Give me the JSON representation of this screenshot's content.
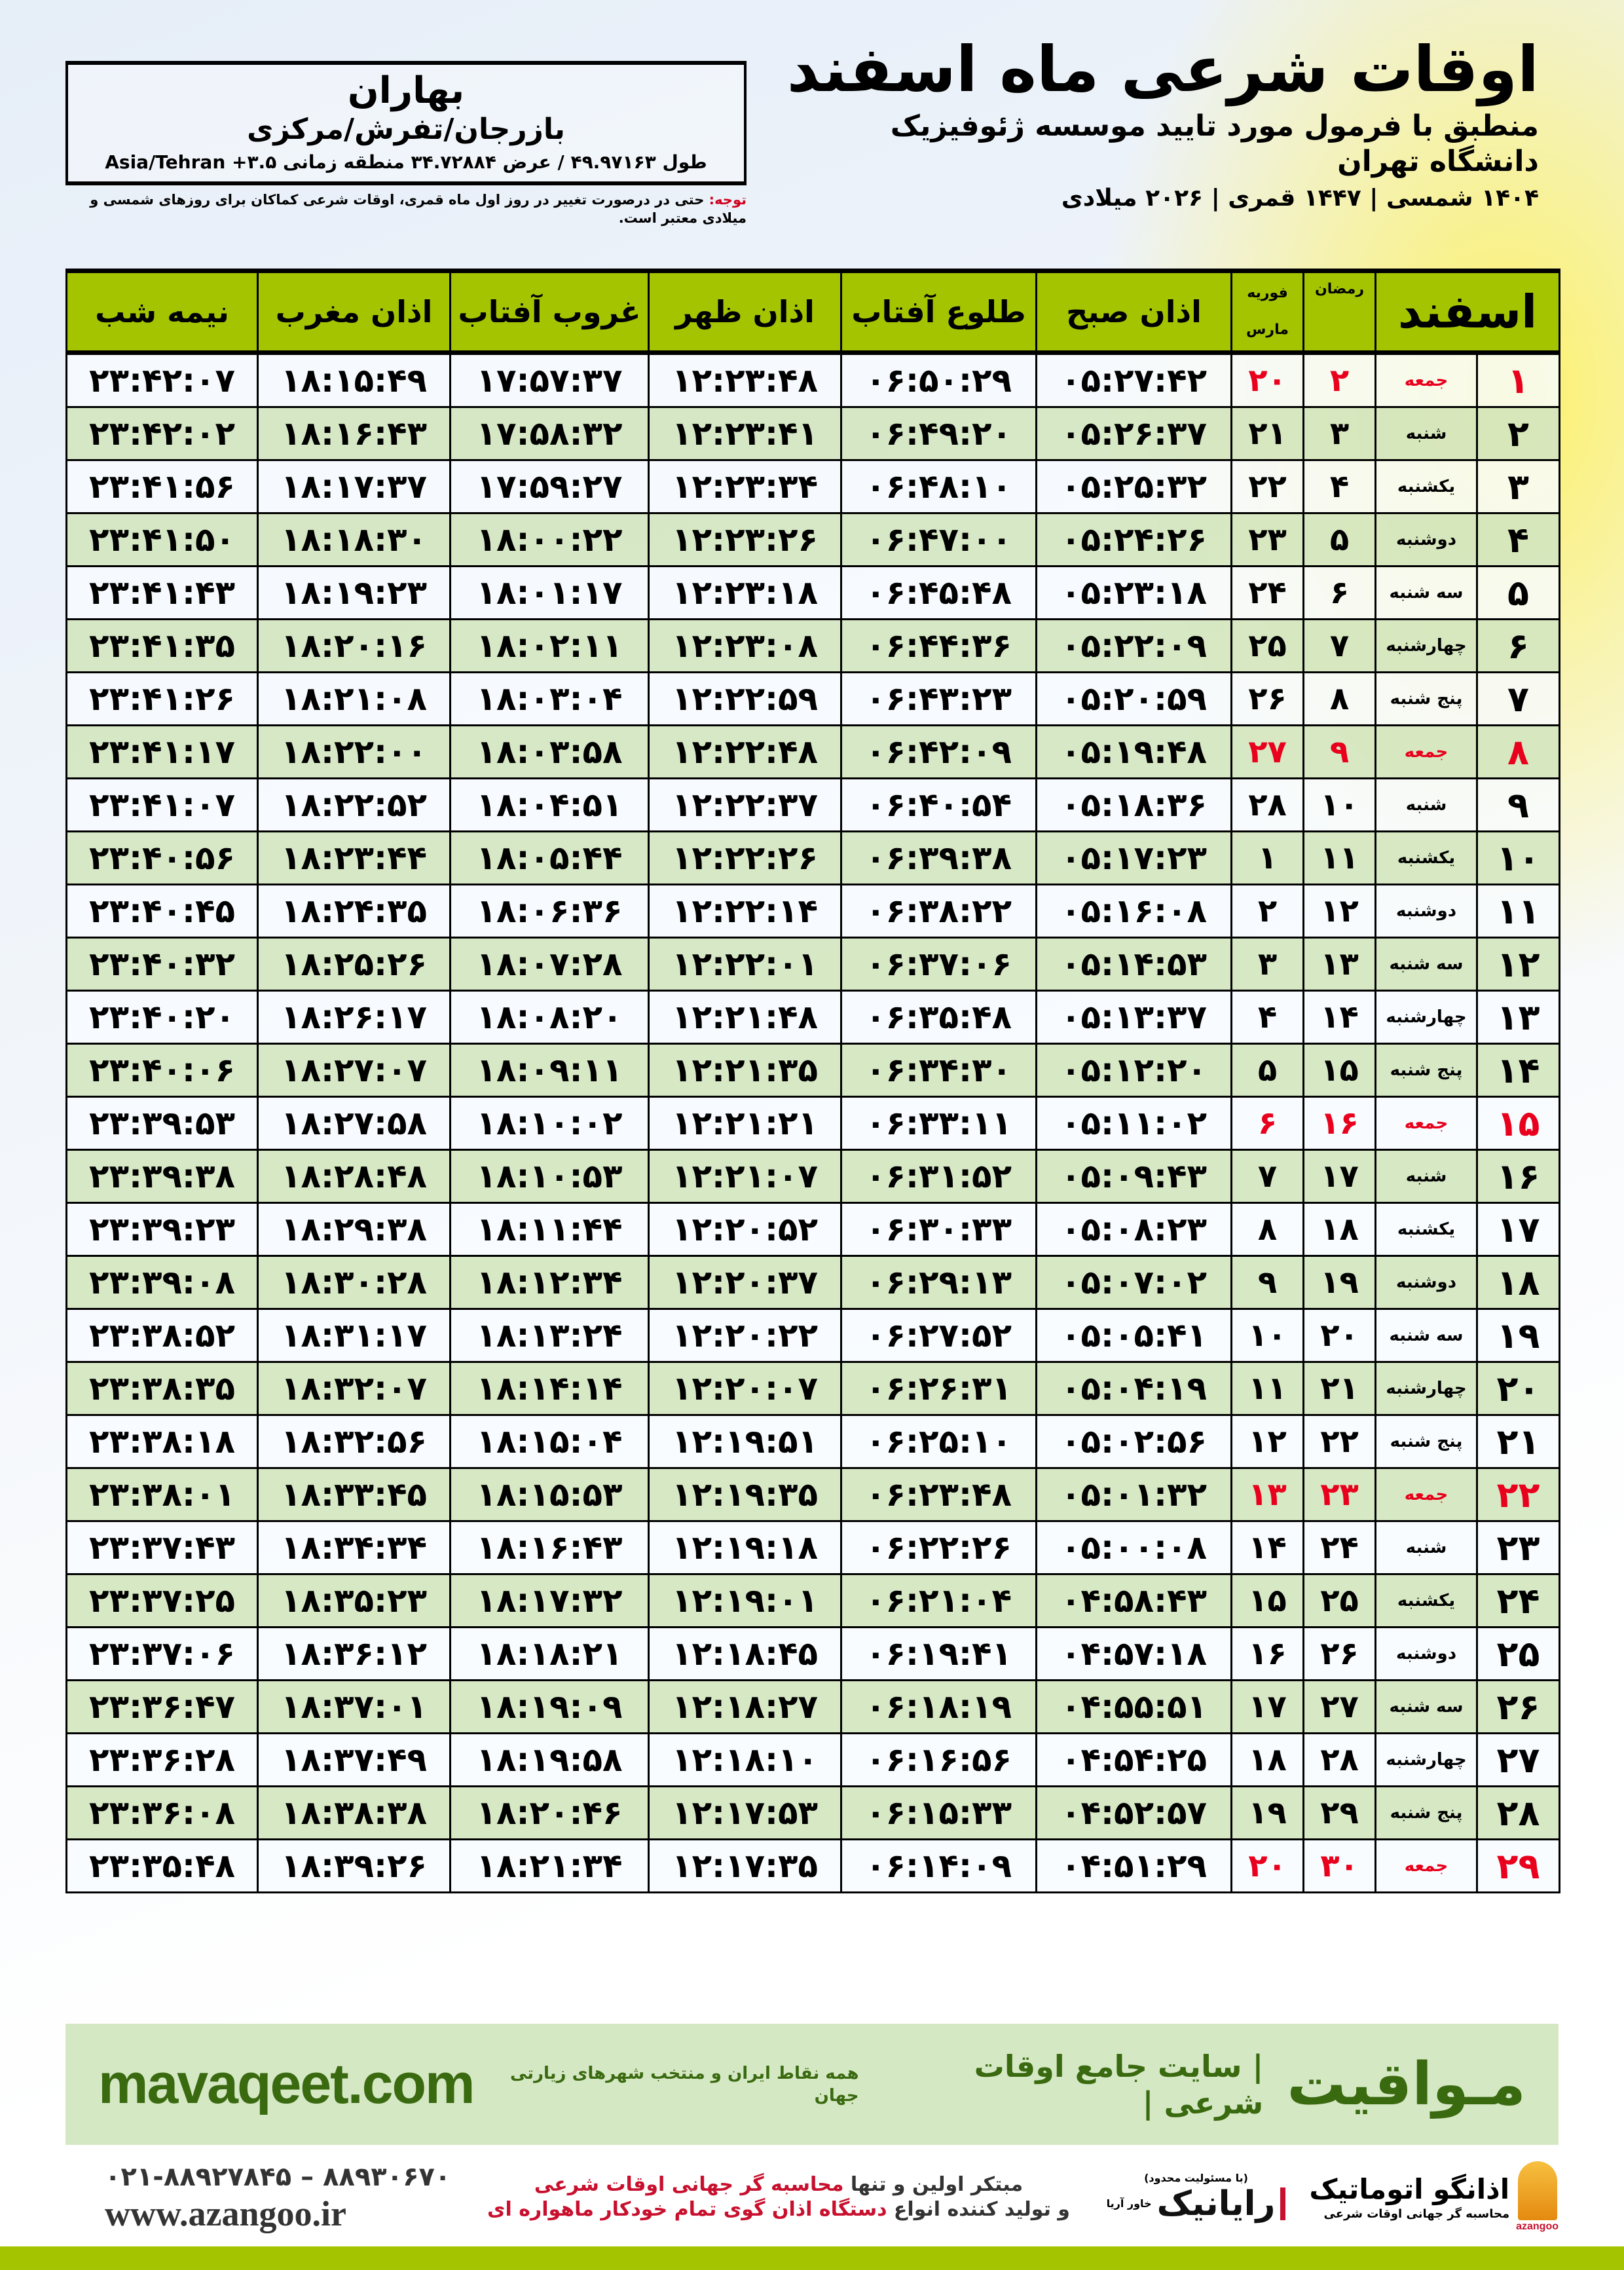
{
  "header": {
    "title": "اوقات شرعی ماه اسفند",
    "subtitle": "منطبق با فرمول مورد تایید موسسه ژئوفیزیک دانشگاه تهران",
    "dateline": "۱۴۰۴ شمسی | ۱۴۴۷ قمری | ۲۰۲۶ میلادی"
  },
  "location": {
    "name": "بهاران",
    "region": "بازرجان/تفرش/مرکزی",
    "coords": "طول ۴۹.۹۷۱۶۳ / عرض ۳۴.۷۲۸۸۴ منطقه زمانی ۳.۵+ Asia/Tehran"
  },
  "note": {
    "label": "توجه:",
    "text": " حتی در درصورت تغییر در روز اول ماه قمری، اوقات شرعی کماکان برای روزهای شمسی و میلادی معتبر است."
  },
  "colors": {
    "header_green": "#a4c400",
    "row_green": "#d4e6c0",
    "friday_red": "#e8001c",
    "brand_green": "#3a6a10"
  },
  "table": {
    "headers": {
      "month": "اسفند",
      "ramadan": "رمضان",
      "feb": "فوریه",
      "mar": "مارس",
      "fajr": "اذان صبح",
      "sunrise": "طلوع آفتاب",
      "dhuhr": "اذان ظهر",
      "sunset": "غروب آفتاب",
      "maghrib": "اذان مغرب",
      "midnight": "نیمه شب"
    },
    "rows": [
      {
        "day": "۱",
        "weekday": "جمعه",
        "ramadan": "۲",
        "gregorian": "۲۰",
        "fajr": "۰۵:۲۷:۴۲",
        "sunrise": "۰۶:۵۰:۲۹",
        "dhuhr": "۱۲:۲۳:۴۸",
        "sunset": "۱۷:۵۷:۳۷",
        "maghrib": "۱۸:۱۵:۴۹",
        "midnight": "۲۳:۴۲:۰۷",
        "holiday": true
      },
      {
        "day": "۲",
        "weekday": "شنبه",
        "ramadan": "۳",
        "gregorian": "۲۱",
        "fajr": "۰۵:۲۶:۳۷",
        "sunrise": "۰۶:۴۹:۲۰",
        "dhuhr": "۱۲:۲۳:۴۱",
        "sunset": "۱۷:۵۸:۳۲",
        "maghrib": "۱۸:۱۶:۴۳",
        "midnight": "۲۳:۴۲:۰۲"
      },
      {
        "day": "۳",
        "weekday": "یکشنبه",
        "ramadan": "۴",
        "gregorian": "۲۲",
        "fajr": "۰۵:۲۵:۳۲",
        "sunrise": "۰۶:۴۸:۱۰",
        "dhuhr": "۱۲:۲۳:۳۴",
        "sunset": "۱۷:۵۹:۲۷",
        "maghrib": "۱۸:۱۷:۳۷",
        "midnight": "۲۳:۴۱:۵۶"
      },
      {
        "day": "۴",
        "weekday": "دوشنبه",
        "ramadan": "۵",
        "gregorian": "۲۳",
        "fajr": "۰۵:۲۴:۲۶",
        "sunrise": "۰۶:۴۷:۰۰",
        "dhuhr": "۱۲:۲۳:۲۶",
        "sunset": "۱۸:۰۰:۲۲",
        "maghrib": "۱۸:۱۸:۳۰",
        "midnight": "۲۳:۴۱:۵۰"
      },
      {
        "day": "۵",
        "weekday": "سه شنبه",
        "ramadan": "۶",
        "gregorian": "۲۴",
        "fajr": "۰۵:۲۳:۱۸",
        "sunrise": "۰۶:۴۵:۴۸",
        "dhuhr": "۱۲:۲۳:۱۸",
        "sunset": "۱۸:۰۱:۱۷",
        "maghrib": "۱۸:۱۹:۲۳",
        "midnight": "۲۳:۴۱:۴۳"
      },
      {
        "day": "۶",
        "weekday": "چهارشنبه",
        "ramadan": "۷",
        "gregorian": "۲۵",
        "fajr": "۰۵:۲۲:۰۹",
        "sunrise": "۰۶:۴۴:۳۶",
        "dhuhr": "۱۲:۲۳:۰۸",
        "sunset": "۱۸:۰۲:۱۱",
        "maghrib": "۱۸:۲۰:۱۶",
        "midnight": "۲۳:۴۱:۳۵"
      },
      {
        "day": "۷",
        "weekday": "پنج شنبه",
        "ramadan": "۸",
        "gregorian": "۲۶",
        "fajr": "۰۵:۲۰:۵۹",
        "sunrise": "۰۶:۴۳:۲۳",
        "dhuhr": "۱۲:۲۲:۵۹",
        "sunset": "۱۸:۰۳:۰۴",
        "maghrib": "۱۸:۲۱:۰۸",
        "midnight": "۲۳:۴۱:۲۶"
      },
      {
        "day": "۸",
        "weekday": "جمعه",
        "ramadan": "۹",
        "gregorian": "۲۷",
        "fajr": "۰۵:۱۹:۴۸",
        "sunrise": "۰۶:۴۲:۰۹",
        "dhuhr": "۱۲:۲۲:۴۸",
        "sunset": "۱۸:۰۳:۵۸",
        "maghrib": "۱۸:۲۲:۰۰",
        "midnight": "۲۳:۴۱:۱۷",
        "holiday": true
      },
      {
        "day": "۹",
        "weekday": "شنبه",
        "ramadan": "۱۰",
        "gregorian": "۲۸",
        "fajr": "۰۵:۱۸:۳۶",
        "sunrise": "۰۶:۴۰:۵۴",
        "dhuhr": "۱۲:۲۲:۳۷",
        "sunset": "۱۸:۰۴:۵۱",
        "maghrib": "۱۸:۲۲:۵۲",
        "midnight": "۲۳:۴۱:۰۷"
      },
      {
        "day": "۱۰",
        "weekday": "یکشنبه",
        "ramadan": "۱۱",
        "gregorian": "۱",
        "fajr": "۰۵:۱۷:۲۳",
        "sunrise": "۰۶:۳۹:۳۸",
        "dhuhr": "۱۲:۲۲:۲۶",
        "sunset": "۱۸:۰۵:۴۴",
        "maghrib": "۱۸:۲۳:۴۴",
        "midnight": "۲۳:۴۰:۵۶"
      },
      {
        "day": "۱۱",
        "weekday": "دوشنبه",
        "ramadan": "۱۲",
        "gregorian": "۲",
        "fajr": "۰۵:۱۶:۰۸",
        "sunrise": "۰۶:۳۸:۲۲",
        "dhuhr": "۱۲:۲۲:۱۴",
        "sunset": "۱۸:۰۶:۳۶",
        "maghrib": "۱۸:۲۴:۳۵",
        "midnight": "۲۳:۴۰:۴۵"
      },
      {
        "day": "۱۲",
        "weekday": "سه شنبه",
        "ramadan": "۱۳",
        "gregorian": "۳",
        "fajr": "۰۵:۱۴:۵۳",
        "sunrise": "۰۶:۳۷:۰۶",
        "dhuhr": "۱۲:۲۲:۰۱",
        "sunset": "۱۸:۰۷:۲۸",
        "maghrib": "۱۸:۲۵:۲۶",
        "midnight": "۲۳:۴۰:۳۲"
      },
      {
        "day": "۱۳",
        "weekday": "چهارشنبه",
        "ramadan": "۱۴",
        "gregorian": "۴",
        "fajr": "۰۵:۱۳:۳۷",
        "sunrise": "۰۶:۳۵:۴۸",
        "dhuhr": "۱۲:۲۱:۴۸",
        "sunset": "۱۸:۰۸:۲۰",
        "maghrib": "۱۸:۲۶:۱۷",
        "midnight": "۲۳:۴۰:۲۰"
      },
      {
        "day": "۱۴",
        "weekday": "پنج شنبه",
        "ramadan": "۱۵",
        "gregorian": "۵",
        "fajr": "۰۵:۱۲:۲۰",
        "sunrise": "۰۶:۳۴:۳۰",
        "dhuhr": "۱۲:۲۱:۳۵",
        "sunset": "۱۸:۰۹:۱۱",
        "maghrib": "۱۸:۲۷:۰۷",
        "midnight": "۲۳:۴۰:۰۶"
      },
      {
        "day": "۱۵",
        "weekday": "جمعه",
        "ramadan": "۱۶",
        "gregorian": "۶",
        "fajr": "۰۵:۱۱:۰۲",
        "sunrise": "۰۶:۳۳:۱۱",
        "dhuhr": "۱۲:۲۱:۲۱",
        "sunset": "۱۸:۱۰:۰۲",
        "maghrib": "۱۸:۲۷:۵۸",
        "midnight": "۲۳:۳۹:۵۳",
        "holiday": true
      },
      {
        "day": "۱۶",
        "weekday": "شنبه",
        "ramadan": "۱۷",
        "gregorian": "۷",
        "fajr": "۰۵:۰۹:۴۳",
        "sunrise": "۰۶:۳۱:۵۲",
        "dhuhr": "۱۲:۲۱:۰۷",
        "sunset": "۱۸:۱۰:۵۳",
        "maghrib": "۱۸:۲۸:۴۸",
        "midnight": "۲۳:۳۹:۳۸"
      },
      {
        "day": "۱۷",
        "weekday": "یکشنبه",
        "ramadan": "۱۸",
        "gregorian": "۸",
        "fajr": "۰۵:۰۸:۲۳",
        "sunrise": "۰۶:۳۰:۳۳",
        "dhuhr": "۱۲:۲۰:۵۲",
        "sunset": "۱۸:۱۱:۴۴",
        "maghrib": "۱۸:۲۹:۳۸",
        "midnight": "۲۳:۳۹:۲۳"
      },
      {
        "day": "۱۸",
        "weekday": "دوشنبه",
        "ramadan": "۱۹",
        "gregorian": "۹",
        "fajr": "۰۵:۰۷:۰۲",
        "sunrise": "۰۶:۲۹:۱۳",
        "dhuhr": "۱۲:۲۰:۳۷",
        "sunset": "۱۸:۱۲:۳۴",
        "maghrib": "۱۸:۳۰:۲۸",
        "midnight": "۲۳:۳۹:۰۸"
      },
      {
        "day": "۱۹",
        "weekday": "سه شنبه",
        "ramadan": "۲۰",
        "gregorian": "۱۰",
        "fajr": "۰۵:۰۵:۴۱",
        "sunrise": "۰۶:۲۷:۵۲",
        "dhuhr": "۱۲:۲۰:۲۲",
        "sunset": "۱۸:۱۳:۲۴",
        "maghrib": "۱۸:۳۱:۱۷",
        "midnight": "۲۳:۳۸:۵۲"
      },
      {
        "day": "۲۰",
        "weekday": "چهارشنبه",
        "ramadan": "۲۱",
        "gregorian": "۱۱",
        "fajr": "۰۵:۰۴:۱۹",
        "sunrise": "۰۶:۲۶:۳۱",
        "dhuhr": "۱۲:۲۰:۰۷",
        "sunset": "۱۸:۱۴:۱۴",
        "maghrib": "۱۸:۳۲:۰۷",
        "midnight": "۲۳:۳۸:۳۵"
      },
      {
        "day": "۲۱",
        "weekday": "پنج شنبه",
        "ramadan": "۲۲",
        "gregorian": "۱۲",
        "fajr": "۰۵:۰۲:۵۶",
        "sunrise": "۰۶:۲۵:۱۰",
        "dhuhr": "۱۲:۱۹:۵۱",
        "sunset": "۱۸:۱۵:۰۴",
        "maghrib": "۱۸:۳۲:۵۶",
        "midnight": "۲۳:۳۸:۱۸"
      },
      {
        "day": "۲۲",
        "weekday": "جمعه",
        "ramadan": "۲۳",
        "gregorian": "۱۳",
        "fajr": "۰۵:۰۱:۳۲",
        "sunrise": "۰۶:۲۳:۴۸",
        "dhuhr": "۱۲:۱۹:۳۵",
        "sunset": "۱۸:۱۵:۵۳",
        "maghrib": "۱۸:۳۳:۴۵",
        "midnight": "۲۳:۳۸:۰۱",
        "holiday": true
      },
      {
        "day": "۲۳",
        "weekday": "شنبه",
        "ramadan": "۲۴",
        "gregorian": "۱۴",
        "fajr": "۰۵:۰۰:۰۸",
        "sunrise": "۰۶:۲۲:۲۶",
        "dhuhr": "۱۲:۱۹:۱۸",
        "sunset": "۱۸:۱۶:۴۳",
        "maghrib": "۱۸:۳۴:۳۴",
        "midnight": "۲۳:۳۷:۴۳"
      },
      {
        "day": "۲۴",
        "weekday": "یکشنبه",
        "ramadan": "۲۵",
        "gregorian": "۱۵",
        "fajr": "۰۴:۵۸:۴۳",
        "sunrise": "۰۶:۲۱:۰۴",
        "dhuhr": "۱۲:۱۹:۰۱",
        "sunset": "۱۸:۱۷:۳۲",
        "maghrib": "۱۸:۳۵:۲۳",
        "midnight": "۲۳:۳۷:۲۵"
      },
      {
        "day": "۲۵",
        "weekday": "دوشنبه",
        "ramadan": "۲۶",
        "gregorian": "۱۶",
        "fajr": "۰۴:۵۷:۱۸",
        "sunrise": "۰۶:۱۹:۴۱",
        "dhuhr": "۱۲:۱۸:۴۵",
        "sunset": "۱۸:۱۸:۲۱",
        "maghrib": "۱۸:۳۶:۱۲",
        "midnight": "۲۳:۳۷:۰۶"
      },
      {
        "day": "۲۶",
        "weekday": "سه شنبه",
        "ramadan": "۲۷",
        "gregorian": "۱۷",
        "fajr": "۰۴:۵۵:۵۱",
        "sunrise": "۰۶:۱۸:۱۹",
        "dhuhr": "۱۲:۱۸:۲۷",
        "sunset": "۱۸:۱۹:۰۹",
        "maghrib": "۱۸:۳۷:۰۱",
        "midnight": "۲۳:۳۶:۴۷"
      },
      {
        "day": "۲۷",
        "weekday": "چهارشنبه",
        "ramadan": "۲۸",
        "gregorian": "۱۸",
        "fajr": "۰۴:۵۴:۲۵",
        "sunrise": "۰۶:۱۶:۵۶",
        "dhuhr": "۱۲:۱۸:۱۰",
        "sunset": "۱۸:۱۹:۵۸",
        "maghrib": "۱۸:۳۷:۴۹",
        "midnight": "۲۳:۳۶:۲۸"
      },
      {
        "day": "۲۸",
        "weekday": "پنج شنبه",
        "ramadan": "۲۹",
        "gregorian": "۱۹",
        "fajr": "۰۴:۵۲:۵۷",
        "sunrise": "۰۶:۱۵:۳۳",
        "dhuhr": "۱۲:۱۷:۵۳",
        "sunset": "۱۸:۲۰:۴۶",
        "maghrib": "۱۸:۳۸:۳۸",
        "midnight": "۲۳:۳۶:۰۸"
      },
      {
        "day": "۲۹",
        "weekday": "جمعه",
        "ramadan": "۳۰",
        "gregorian": "۲۰",
        "fajr": "۰۴:۵۱:۲۹",
        "sunrise": "۰۶:۱۴:۰۹",
        "dhuhr": "۱۲:۱۷:۳۵",
        "sunset": "۱۸:۲۱:۳۴",
        "maghrib": "۱۸:۳۹:۲۶",
        "midnight": "۲۳:۳۵:۴۸",
        "holiday": true
      }
    ]
  },
  "banner": {
    "brand": "مـواقیت",
    "tagline": "| سایت جامع اوقات شرعی |",
    "sub": "همه نقاط ایران و منتخب شهرهای زیارتی جهان",
    "url": "mavaqeet.com"
  },
  "promo": {
    "line1_a": "مبتکر اولین و تنها ",
    "line1_b": "محاسبه گر جهانی اوقات شرعی",
    "line2_a": "و تولید کننده انواع ",
    "line2_b": "دستگاه اذان گوی تمام خودکار ماهواره ای"
  },
  "contact": {
    "phone": "۰۲۱-۸۸۹۲۷۸۴۵ – ۸۸۹۳۰۶۷۰",
    "website": "www.azangoo.ir"
  },
  "logos": {
    "rayanik": "رایانیک",
    "rayanik_sub": "خاور آریا",
    "rayanik_note": "(با مسئولیت محدود)",
    "azangoo": "اذانگو اتوماتیک",
    "azangoo_sub": "محاسبه گر جهانی اوقات شرعی",
    "azangoo_latin": "azangoo"
  }
}
